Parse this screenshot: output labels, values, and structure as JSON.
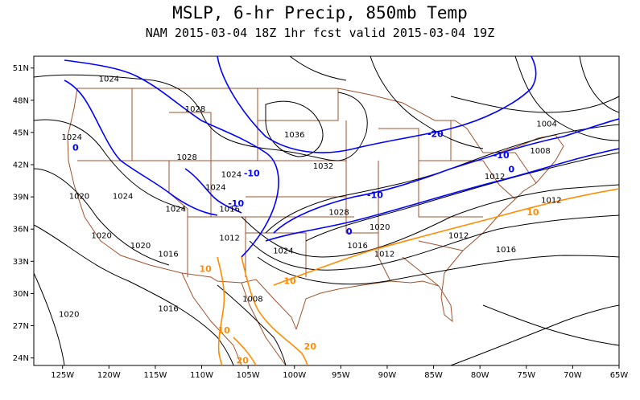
{
  "title": "MSLP, 6-hr Precip, 850mb Temp",
  "subtitle": "NAM 2015-03-04 18Z 1hr fcst valid 2015-03-04 19Z",
  "colors": {
    "isobar": "#000000",
    "borders": "#a0522d",
    "temp_cold": "#0000ff",
    "temp_warm": "#ff8c00"
  },
  "axes": {
    "lon_ticks": [
      "125W",
      "120W",
      "115W",
      "110W",
      "105W",
      "100W",
      "95W",
      "90W",
      "85W",
      "80W",
      "75W",
      "70W",
      "65W"
    ],
    "lat_ticks": [
      "51N",
      "48N",
      "45N",
      "42N",
      "39N",
      "36N",
      "33N",
      "30N",
      "27N",
      "24N"
    ]
  },
  "labels": {
    "pressure": [
      {
        "text": "1024",
        "lon": -120.0,
        "lat": 50.0
      },
      {
        "text": "1028",
        "lon": -110.7,
        "lat": 47.2
      },
      {
        "text": "1036",
        "lon": -100.0,
        "lat": 44.8
      },
      {
        "text": "1004",
        "lon": -72.8,
        "lat": 45.8
      },
      {
        "text": "1008",
        "lon": -73.5,
        "lat": 43.3
      },
      {
        "text": "1024",
        "lon": -124.0,
        "lat": 44.6
      },
      {
        "text": "1028",
        "lon": -111.6,
        "lat": 42.7
      },
      {
        "text": "1032",
        "lon": -96.9,
        "lat": 41.9
      },
      {
        "text": "1012",
        "lon": -78.4,
        "lat": 40.9
      },
      {
        "text": "1024",
        "lon": -106.8,
        "lat": 41.1
      },
      {
        "text": "1024",
        "lon": -108.5,
        "lat": 39.9
      },
      {
        "text": "1020",
        "lon": -123.2,
        "lat": 39.1
      },
      {
        "text": "1024",
        "lon": -118.5,
        "lat": 39.1
      },
      {
        "text": "1024",
        "lon": -112.8,
        "lat": 37.9
      },
      {
        "text": "1016",
        "lon": -107.0,
        "lat": 37.9
      },
      {
        "text": "1028",
        "lon": -95.2,
        "lat": 37.6
      },
      {
        "text": "1012",
        "lon": -72.3,
        "lat": 38.7
      },
      {
        "text": "1020",
        "lon": -90.8,
        "lat": 36.2
      },
      {
        "text": "1020",
        "lon": -120.8,
        "lat": 35.4
      },
      {
        "text": "1012",
        "lon": -82.3,
        "lat": 35.4
      },
      {
        "text": "1020",
        "lon": -116.6,
        "lat": 34.5
      },
      {
        "text": "1012",
        "lon": -107.0,
        "lat": 35.2
      },
      {
        "text": "1024",
        "lon": -101.2,
        "lat": 34.0
      },
      {
        "text": "1016",
        "lon": -93.2,
        "lat": 34.5
      },
      {
        "text": "1012",
        "lon": -90.3,
        "lat": 33.7
      },
      {
        "text": "1016",
        "lon": -77.2,
        "lat": 34.1
      },
      {
        "text": "1016",
        "lon": -113.6,
        "lat": 33.7
      },
      {
        "text": "1016",
        "lon": -113.6,
        "lat": 28.6
      },
      {
        "text": "1008",
        "lon": -104.5,
        "lat": 29.5
      },
      {
        "text": "1020",
        "lon": -124.3,
        "lat": 28.1
      }
    ],
    "temperature": [
      {
        "text": "-20",
        "lon": -84.8,
        "lat": 44.9,
        "kind": "cold"
      },
      {
        "text": "-10",
        "lon": -77.7,
        "lat": 42.9,
        "kind": "cold"
      },
      {
        "text": "0",
        "lon": -76.6,
        "lat": 41.6,
        "kind": "cold"
      },
      {
        "text": "-10",
        "lon": -104.6,
        "lat": 41.2,
        "kind": "cold"
      },
      {
        "text": "-10",
        "lon": -91.3,
        "lat": 39.2,
        "kind": "cold"
      },
      {
        "text": "0",
        "lon": -123.6,
        "lat": 43.6,
        "kind": "cold"
      },
      {
        "text": "-10",
        "lon": -106.3,
        "lat": 38.4,
        "kind": "cold"
      },
      {
        "text": "0",
        "lon": -94.1,
        "lat": 35.8,
        "kind": "cold"
      },
      {
        "text": "10",
        "lon": -74.3,
        "lat": 37.6,
        "kind": "warm"
      },
      {
        "text": "10",
        "lon": -100.5,
        "lat": 31.2,
        "kind": "warm"
      },
      {
        "text": "10",
        "lon": -109.6,
        "lat": 32.3,
        "kind": "warm"
      },
      {
        "text": "10",
        "lon": -107.6,
        "lat": 26.6,
        "kind": "warm"
      },
      {
        "text": "20",
        "lon": -98.3,
        "lat": 25.1,
        "kind": "warm"
      },
      {
        "text": "20",
        "lon": -105.6,
        "lat": 23.8,
        "kind": "warm"
      }
    ]
  }
}
